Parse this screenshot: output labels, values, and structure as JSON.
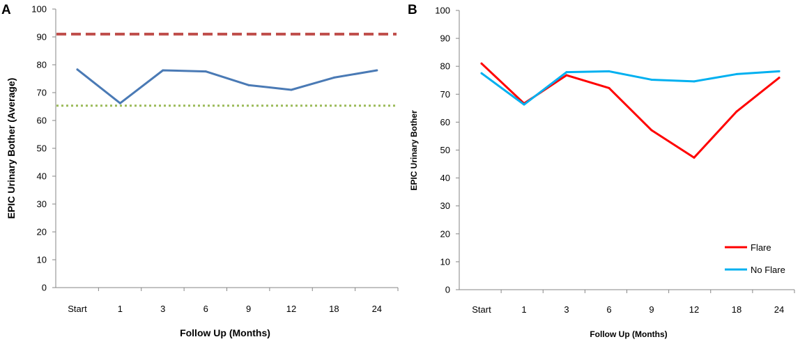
{
  "chart_data": [
    {
      "panel_label": "A",
      "type": "line",
      "categories": [
        "Start",
        "1",
        "3",
        "6",
        "9",
        "12",
        "18",
        "24"
      ],
      "series": [
        {
          "name": "Average",
          "values": [
            78.3,
            66.2,
            78.0,
            77.6,
            72.7,
            71.0,
            75.4,
            78.0
          ],
          "color": "#4a7ab5"
        }
      ],
      "reference_lines": [
        {
          "value": 91,
          "style": "dashed",
          "color": "#c0504d"
        },
        {
          "value": 65.3,
          "style": "dotted",
          "color": "#9bbb59"
        }
      ],
      "title": "",
      "xlabel": "Follow Up (Months)",
      "ylabel": "EPIC Urinary Bother (Average)",
      "ylim": [
        0,
        100
      ],
      "yticks": [
        "0",
        "10",
        "20",
        "30",
        "40",
        "50",
        "60",
        "70",
        "80",
        "90",
        "100"
      ],
      "grid": false
    },
    {
      "panel_label": "B",
      "type": "line",
      "categories": [
        "Start",
        "1",
        "3",
        "6",
        "9",
        "12",
        "18",
        "24"
      ],
      "series": [
        {
          "name": "Flare",
          "values": [
            81.0,
            66.7,
            76.8,
            72.2,
            57.1,
            47.3,
            63.8,
            75.9
          ],
          "color": "#ff0000"
        },
        {
          "name": "No Flare",
          "values": [
            77.5,
            66.3,
            77.9,
            78.2,
            75.2,
            74.6,
            77.2,
            78.2
          ],
          "color": "#00b0f0"
        }
      ],
      "title": "",
      "xlabel": "Follow Up (Months)",
      "ylabel": "EPIC Urinary Bother",
      "ylim": [
        0,
        100
      ],
      "yticks": [
        "0",
        "10",
        "20",
        "30",
        "40",
        "50",
        "60",
        "70",
        "80",
        "90",
        "100"
      ],
      "legend": "bottom-right",
      "grid": false
    }
  ]
}
